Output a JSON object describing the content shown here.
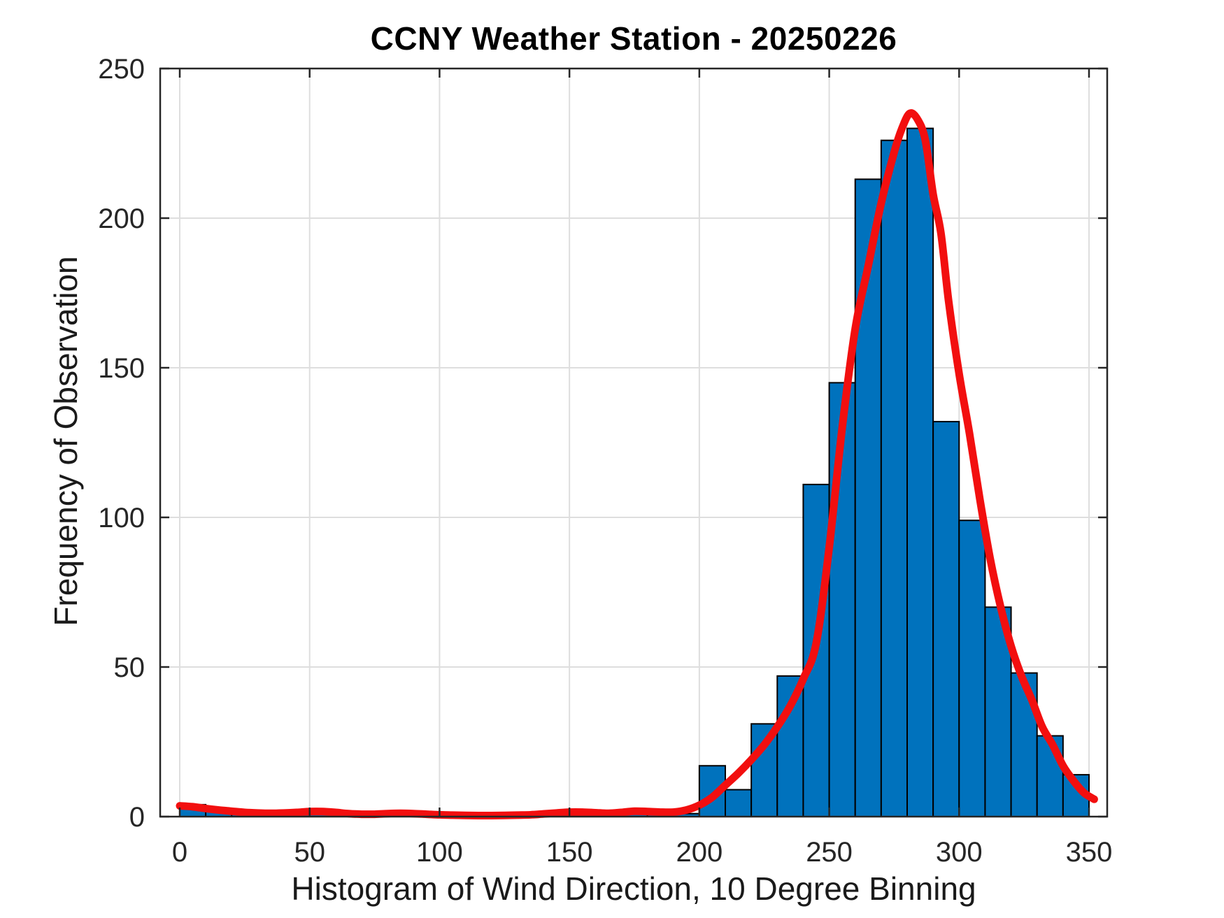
{
  "chart_data": {
    "type": "bar",
    "title": "CCNY Weather Station - 20250226",
    "xlabel": "Histogram of Wind Direction, 10 Degree Binning",
    "ylabel": "Frequency of Observation",
    "bin_width": 10,
    "bin_starts": [
      0,
      10,
      20,
      30,
      40,
      50,
      60,
      70,
      80,
      90,
      100,
      110,
      120,
      130,
      140,
      150,
      160,
      170,
      180,
      190,
      200,
      210,
      220,
      230,
      240,
      250,
      260,
      270,
      280,
      290,
      300,
      310,
      320,
      330,
      340
    ],
    "values": [
      4,
      2,
      2,
      1,
      1,
      2,
      1,
      0,
      0,
      0,
      0,
      0,
      0,
      0,
      0,
      2,
      2,
      2,
      1,
      1,
      17,
      9,
      31,
      47,
      111,
      145,
      213,
      226,
      230,
      132,
      99,
      70,
      48,
      27,
      14
    ],
    "series": [
      {
        "name": "wind-direction-histogram",
        "type": "bar",
        "color": "#0072BD"
      },
      {
        "name": "density-fit-curve",
        "type": "line",
        "color": "#F20F0F"
      }
    ],
    "curve": [
      [
        0,
        3.6
      ],
      [
        5,
        3.3
      ],
      [
        10,
        2.7
      ],
      [
        15,
        2.2
      ],
      [
        20,
        1.8
      ],
      [
        25,
        1.4
      ],
      [
        30,
        1.2
      ],
      [
        35,
        1.1
      ],
      [
        40,
        1.2
      ],
      [
        45,
        1.4
      ],
      [
        50,
        1.7
      ],
      [
        55,
        1.7
      ],
      [
        60,
        1.4
      ],
      [
        65,
        1.0
      ],
      [
        70,
        0.8
      ],
      [
        75,
        0.8
      ],
      [
        80,
        1.0
      ],
      [
        85,
        1.1
      ],
      [
        90,
        1.0
      ],
      [
        95,
        0.8
      ],
      [
        100,
        0.6
      ],
      [
        105,
        0.5
      ],
      [
        110,
        0.4
      ],
      [
        115,
        0.35
      ],
      [
        120,
        0.35
      ],
      [
        125,
        0.4
      ],
      [
        130,
        0.5
      ],
      [
        135,
        0.6
      ],
      [
        140,
        0.9
      ],
      [
        145,
        1.2
      ],
      [
        150,
        1.5
      ],
      [
        155,
        1.5
      ],
      [
        160,
        1.3
      ],
      [
        165,
        1.1
      ],
      [
        170,
        1.4
      ],
      [
        175,
        1.8
      ],
      [
        180,
        1.7
      ],
      [
        185,
        1.5
      ],
      [
        190,
        1.5
      ],
      [
        195,
        2.2
      ],
      [
        200,
        3.8
      ],
      [
        205,
        6.5
      ],
      [
        210,
        10.5
      ],
      [
        215,
        14.5
      ],
      [
        220,
        19
      ],
      [
        225,
        24
      ],
      [
        230,
        30
      ],
      [
        235,
        37
      ],
      [
        240,
        46
      ],
      [
        245,
        58
      ],
      [
        250,
        90
      ],
      [
        255,
        130
      ],
      [
        260,
        163
      ],
      [
        265,
        184
      ],
      [
        270,
        205
      ],
      [
        275,
        222
      ],
      [
        278,
        230
      ],
      [
        281,
        235
      ],
      [
        284,
        233
      ],
      [
        287,
        226
      ],
      [
        290,
        208
      ],
      [
        293,
        195
      ],
      [
        296,
        172
      ],
      [
        300,
        148
      ],
      [
        304,
        128
      ],
      [
        308,
        106
      ],
      [
        312,
        86
      ],
      [
        316,
        70
      ],
      [
        320,
        57
      ],
      [
        324,
        47
      ],
      [
        328,
        39
      ],
      [
        332,
        30
      ],
      [
        336,
        24
      ],
      [
        340,
        17
      ],
      [
        344,
        12
      ],
      [
        348,
        8
      ],
      [
        352,
        5.8
      ]
    ],
    "xticks": [
      0,
      50,
      100,
      150,
      200,
      250,
      300,
      350
    ],
    "yticks": [
      0,
      50,
      100,
      150,
      200,
      250
    ],
    "xlim": [
      -7.5,
      357
    ],
    "ylim": [
      0,
      250
    ],
    "grid": true,
    "grid_color": "#dedede",
    "axis_color": "#262626",
    "bar_color": "#0072BD",
    "bar_edge_color": "#000000",
    "curve_color": "#F20F0F",
    "background_color": "#ffffff"
  }
}
